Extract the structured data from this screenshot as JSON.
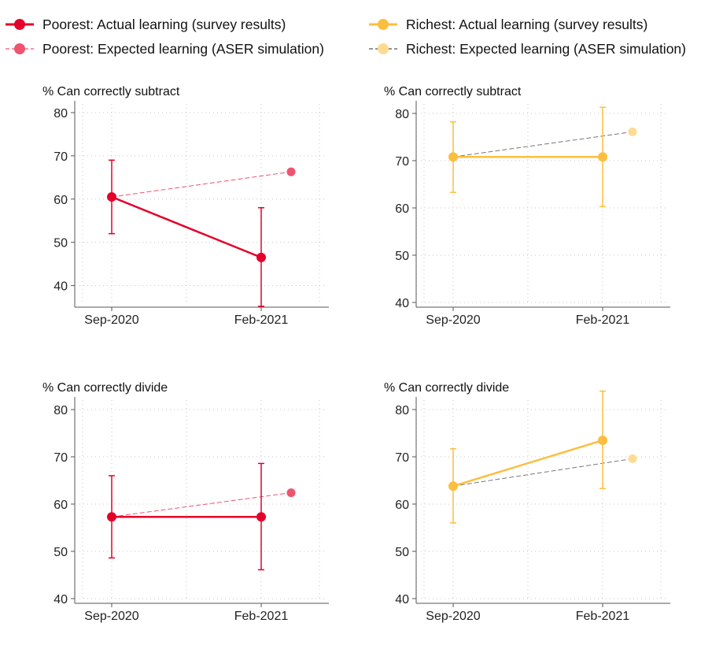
{
  "legend": [
    {
      "label": "Poorest: Actual learning (survey results)",
      "color": "#e4002b",
      "style": "solid"
    },
    {
      "label": "Poorest: Expected learning (ASER simulation)",
      "color": "#ee5470",
      "style": "dashed"
    },
    {
      "label": "Richest: Actual learning (survey results)",
      "color": "#fcbe3f",
      "style": "solid"
    },
    {
      "label": "Richest: Expected learning (ASER simulation)",
      "color": "#fddc91",
      "style": "dashed"
    }
  ],
  "chart_data": [
    {
      "type": "line",
      "group": "Poorest",
      "title": "% Can correctly subtract",
      "x_ticks": [
        "Sep-2020",
        "Feb-2021"
      ],
      "yticks": [
        40,
        50,
        60,
        70,
        80
      ],
      "ylim": [
        35,
        82
      ],
      "grid": true,
      "actual": {
        "color": "#e4002b",
        "values": [
          60.5,
          46.5
        ],
        "ci_low": [
          52,
          35.2
        ],
        "ci_high": [
          69,
          58
        ]
      },
      "expected": {
        "color": "#ee5470",
        "values": [
          60.5,
          66.3
        ]
      }
    },
    {
      "type": "line",
      "group": "Richest",
      "title": "% Can correctly subtract",
      "x_ticks": [
        "Sep-2020",
        "Feb-2021"
      ],
      "yticks": [
        40,
        50,
        60,
        70,
        80
      ],
      "ylim": [
        39,
        82
      ],
      "grid": true,
      "actual": {
        "color": "#fcbe3f",
        "values": [
          70.8,
          70.8
        ],
        "ci_low": [
          63.3,
          60.3
        ],
        "ci_high": [
          78.2,
          81.3
        ]
      },
      "expected": {
        "color": "#fddc91",
        "values": [
          70.8,
          76.1
        ]
      }
    },
    {
      "type": "line",
      "group": "Poorest",
      "title": "% Can correctly divide",
      "x_ticks": [
        "Sep-2020",
        "Feb-2021"
      ],
      "yticks": [
        40,
        50,
        60,
        70,
        80
      ],
      "ylim": [
        39,
        82
      ],
      "grid": true,
      "actual": {
        "color": "#e4002b",
        "values": [
          57.3,
          57.3
        ],
        "ci_low": [
          48.6,
          46.1
        ],
        "ci_high": [
          66,
          68.6
        ]
      },
      "expected": {
        "color": "#ee5470",
        "values": [
          57.3,
          62.4
        ]
      }
    },
    {
      "type": "line",
      "group": "Richest",
      "title": "% Can correctly divide",
      "x_ticks": [
        "Sep-2020",
        "Feb-2021"
      ],
      "yticks": [
        40,
        50,
        60,
        70,
        80
      ],
      "ylim": [
        39,
        82
      ],
      "grid": true,
      "actual": {
        "color": "#fcbe3f",
        "values": [
          63.8,
          73.5
        ],
        "ci_low": [
          56,
          63.3
        ],
        "ci_high": [
          71.7,
          83.9
        ]
      },
      "expected": {
        "color": "#fddc91",
        "values": [
          63.8,
          69.6
        ]
      }
    }
  ]
}
